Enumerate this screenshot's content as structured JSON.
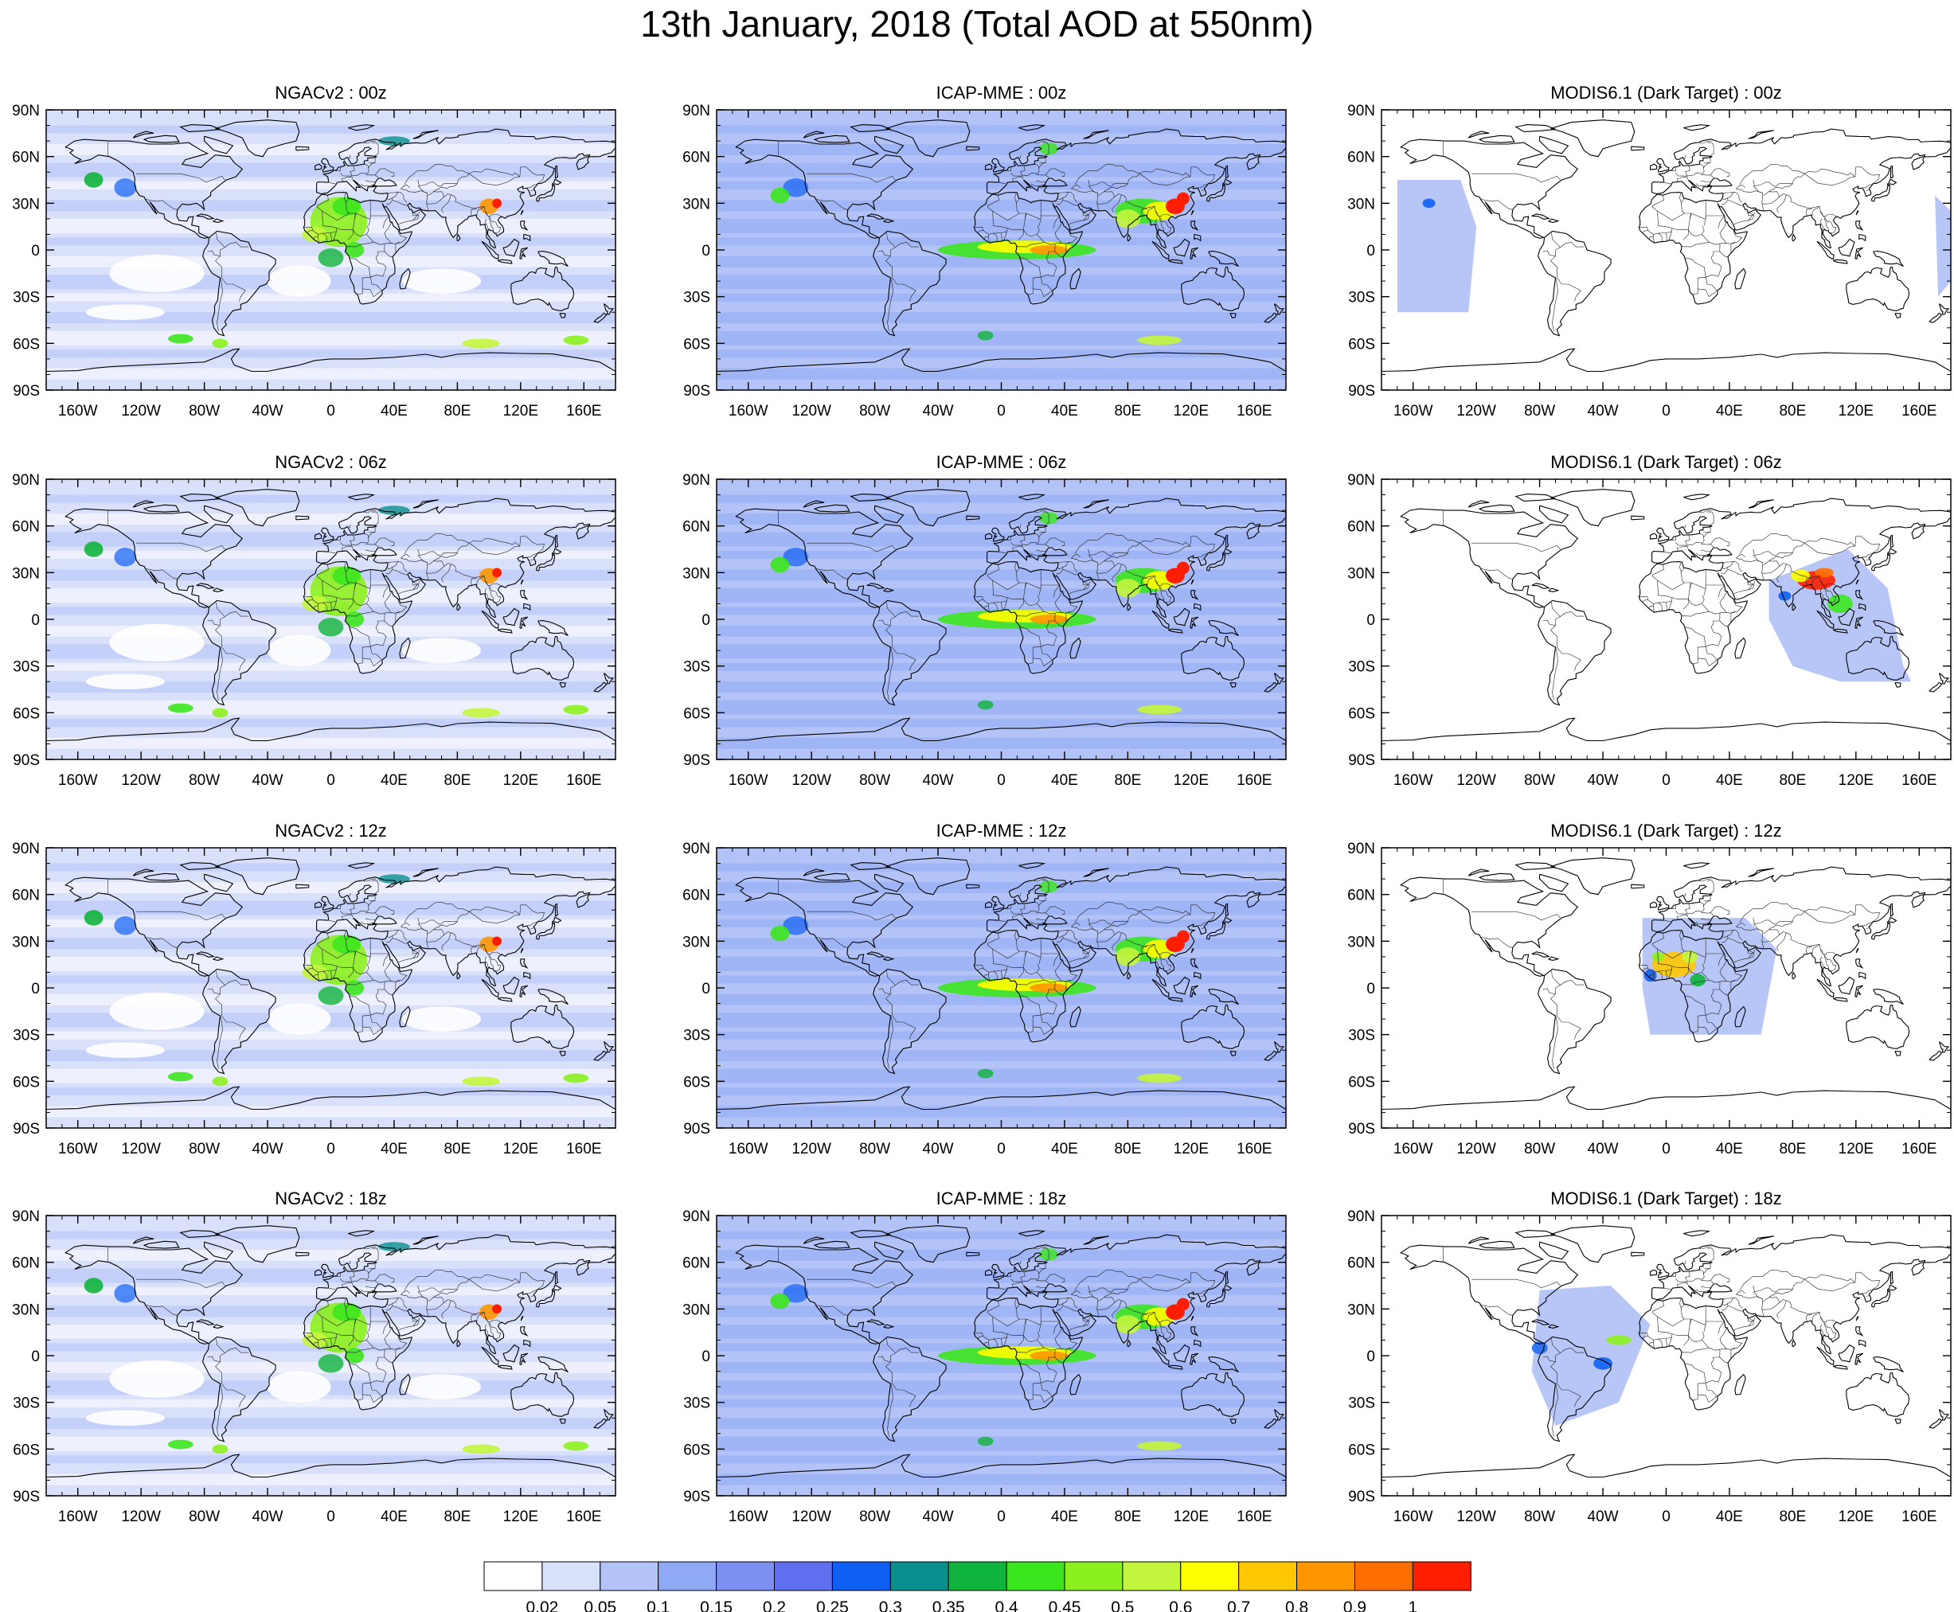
{
  "title": "13th January, 2018 (Total AOD at 550nm)",
  "panels": [
    {
      "id": "ngac-00z",
      "title": "NGACv2 : 00z",
      "source": "ngac",
      "time": "00z"
    },
    {
      "id": "icap-00z",
      "title": "ICAP-MME : 00z",
      "source": "icap",
      "time": "00z"
    },
    {
      "id": "modis-00z",
      "title": "MODIS6.1 (Dark Target) : 00z",
      "source": "modis",
      "time": "00z"
    },
    {
      "id": "ngac-06z",
      "title": "NGACv2 : 06z",
      "source": "ngac",
      "time": "06z"
    },
    {
      "id": "icap-06z",
      "title": "ICAP-MME : 06z",
      "source": "icap",
      "time": "06z"
    },
    {
      "id": "modis-06z",
      "title": "MODIS6.1 (Dark Target) : 06z",
      "source": "modis",
      "time": "06z"
    },
    {
      "id": "ngac-12z",
      "title": "NGACv2 : 12z",
      "source": "ngac",
      "time": "12z"
    },
    {
      "id": "icap-12z",
      "title": "ICAP-MME : 12z",
      "source": "icap",
      "time": "12z"
    },
    {
      "id": "modis-12z",
      "title": "MODIS6.1 (Dark Target) : 12z",
      "source": "modis",
      "time": "12z"
    },
    {
      "id": "ngac-18z",
      "title": "NGACv2 : 18z",
      "source": "ngac",
      "time": "18z"
    },
    {
      "id": "icap-18z",
      "title": "ICAP-MME : 18z",
      "source": "icap",
      "time": "18z"
    },
    {
      "id": "modis-18z",
      "title": "MODIS6.1 (Dark Target) : 18z",
      "source": "modis",
      "time": "18z"
    }
  ],
  "axes": {
    "lat_ticks": [
      {
        "value": 90,
        "label": "90N"
      },
      {
        "value": 60,
        "label": "60N"
      },
      {
        "value": 30,
        "label": "30N"
      },
      {
        "value": 0,
        "label": "0"
      },
      {
        "value": -30,
        "label": "30S"
      },
      {
        "value": -60,
        "label": "60S"
      },
      {
        "value": -90,
        "label": "90S"
      }
    ],
    "lon_ticks": [
      {
        "value": -160,
        "label": "160W"
      },
      {
        "value": -120,
        "label": "120W"
      },
      {
        "value": -80,
        "label": "80W"
      },
      {
        "value": -40,
        "label": "40W"
      },
      {
        "value": 0,
        "label": "0"
      },
      {
        "value": 40,
        "label": "40E"
      },
      {
        "value": 80,
        "label": "80E"
      },
      {
        "value": 120,
        "label": "120E"
      },
      {
        "value": 160,
        "label": "160E"
      }
    ],
    "lon_range": [
      -180,
      180
    ],
    "lat_range": [
      -90,
      90
    ]
  },
  "colorbar": {
    "colors": [
      "#ffffff",
      "#d9e0fa",
      "#b3c3f7",
      "#8fa9f5",
      "#7d8ff0",
      "#5f6ff0",
      "#0f5ff5",
      "#0a8f8f",
      "#0fb43c",
      "#3ce61e",
      "#8cf01e",
      "#c3f53c",
      "#ffff00",
      "#ffc800",
      "#ff9600",
      "#ff6e00",
      "#ff1e00"
    ],
    "labels": [
      "0.02",
      "0.05",
      "0.1",
      "0.15",
      "0.2",
      "0.25",
      "0.3",
      "0.35",
      "0.4",
      "0.45",
      "0.5",
      "0.6",
      "0.7",
      "0.8",
      "0.9",
      "1"
    ]
  }
}
